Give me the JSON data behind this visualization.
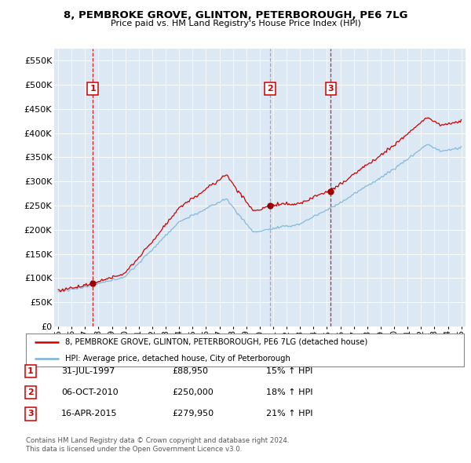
{
  "title": "8, PEMBROKE GROVE, GLINTON, PETERBOROUGH, PE6 7LG",
  "subtitle": "Price paid vs. HM Land Registry's House Price Index (HPI)",
  "plot_bg_color": "#dce9f5",
  "yticks": [
    0,
    50000,
    100000,
    150000,
    200000,
    250000,
    300000,
    350000,
    400000,
    450000,
    500000,
    550000
  ],
  "ytick_labels": [
    "£0",
    "£50K",
    "£100K",
    "£150K",
    "£200K",
    "£250K",
    "£300K",
    "£350K",
    "£400K",
    "£450K",
    "£500K",
    "£550K"
  ],
  "xmin": 1994.7,
  "xmax": 2025.3,
  "ymin": 0,
  "ymax": 575000,
  "sale_dates": [
    1997.58,
    2010.76,
    2015.29
  ],
  "sale_prices": [
    88950,
    250000,
    279950
  ],
  "sale_labels": [
    "1",
    "2",
    "3"
  ],
  "hpi_line_color": "#7ab4d8",
  "price_line_color": "#cc0000",
  "sale_marker_color": "#990000",
  "dashed_colors": [
    "#cc0000",
    "#9999bb",
    "#cc0000"
  ],
  "legend_label_red": "8, PEMBROKE GROVE, GLINTON, PETERBOROUGH, PE6 7LG (detached house)",
  "legend_label_blue": "HPI: Average price, detached house, City of Peterborough",
  "table_rows": [
    {
      "num": "1",
      "date": "31-JUL-1997",
      "price": "£88,950",
      "hpi": "15% ↑ HPI"
    },
    {
      "num": "2",
      "date": "06-OCT-2010",
      "price": "£250,000",
      "hpi": "18% ↑ HPI"
    },
    {
      "num": "3",
      "date": "16-APR-2015",
      "price": "£279,950",
      "hpi": "21% ↑ HPI"
    }
  ],
  "footer1": "Contains HM Land Registry data © Crown copyright and database right 2024.",
  "footer2": "This data is licensed under the Open Government Licence v3.0."
}
